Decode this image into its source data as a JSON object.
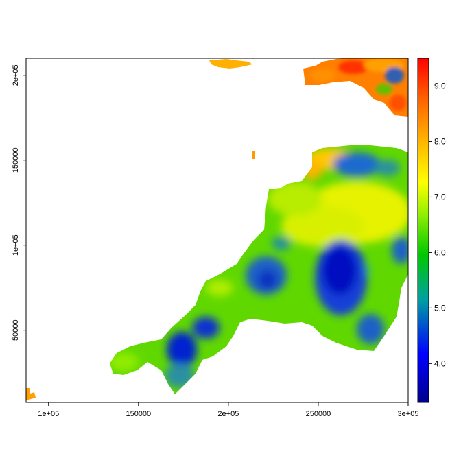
{
  "map": {
    "x_ticks": [
      "1e+05",
      "150000",
      "2e+05",
      "250000",
      "3e+05"
    ],
    "y_ticks": [
      "50000",
      "1e+05",
      "150000",
      "2e+05"
    ],
    "x_tick_values": [
      100000,
      150000,
      200000,
      250000,
      300000
    ],
    "y_tick_values": [
      50000,
      100000,
      150000,
      200000
    ],
    "xlim": [
      87500,
      300000
    ],
    "ylim": [
      7500,
      210000
    ],
    "legend_ticks": [
      "4.0",
      "5.0",
      "6.0",
      "7.0",
      "8.0",
      "9.0"
    ],
    "legend_values": [
      4.0,
      5.0,
      6.0,
      7.0,
      8.0,
      9.0
    ],
    "legend_range": [
      3.3,
      9.5
    ],
    "legend_position": "right",
    "palette": [
      "#0000b4",
      "#0000ff",
      "#00a0a0",
      "#00c800",
      "#96f000",
      "#ffff00",
      "#ffb400",
      "#ff6400",
      "#ff0000"
    ]
  }
}
